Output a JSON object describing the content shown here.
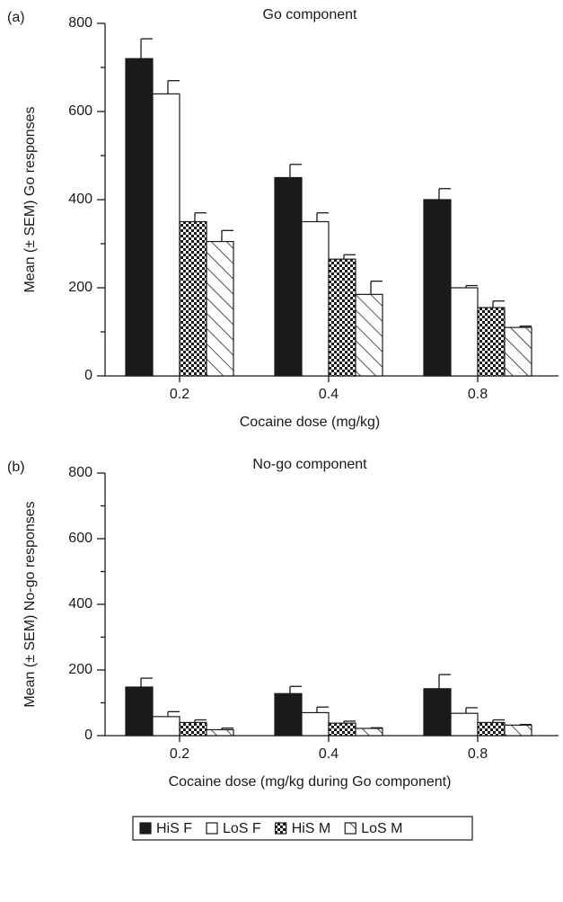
{
  "chart_data": [
    {
      "type": "bar",
      "panel_label": "(a)",
      "title": "Go component",
      "x_label": "Cocaine dose (mg/kg)",
      "y_label": "Mean (± SEM) Go responses",
      "categories": [
        "0.2",
        "0.4",
        "0.8"
      ],
      "series": [
        {
          "color": "#1a1a1a",
          "pattern": "solid",
          "values": [
            720,
            450,
            400
          ],
          "errors": [
            45,
            30,
            25
          ]
        },
        {
          "color": "#1a1a1a",
          "pattern": "none",
          "values": [
            640,
            350,
            200
          ],
          "errors": [
            30,
            20,
            5
          ]
        },
        {
          "color": "#1a1a1a",
          "pattern": "dots",
          "values": [
            350,
            265,
            155
          ],
          "errors": [
            20,
            10,
            15
          ]
        },
        {
          "color": "#1a1a1a",
          "pattern": "hatch",
          "values": [
            305,
            185,
            110
          ],
          "errors": [
            25,
            30,
            3
          ]
        }
      ],
      "ylim": [
        0,
        800
      ],
      "yticks": [
        0,
        200,
        400,
        600,
        800
      ],
      "yminorticks": [
        100,
        300,
        500,
        700
      ]
    },
    {
      "type": "bar",
      "panel_label": "(b)",
      "title": "No-go component",
      "x_label": "Cocaine dose (mg/kg during Go component)",
      "y_label": "Mean (± SEM) No-go responses",
      "categories": [
        "0.2",
        "0.4",
        "0.8"
      ],
      "series": [
        {
          "name": "HiS F",
          "color": "#1a1a1a",
          "pattern": "solid",
          "values": [
            148,
            128,
            143
          ],
          "errors": [
            27,
            22,
            43
          ]
        },
        {
          "name": "LoS F",
          "color": "#1a1a1a",
          "pattern": "none",
          "values": [
            58,
            70,
            68
          ],
          "errors": [
            15,
            17,
            17
          ]
        },
        {
          "name": "HiS M",
          "color": "#1a1a1a",
          "pattern": "dots",
          "values": [
            40,
            38,
            40
          ],
          "errors": [
            8,
            6,
            8
          ]
        },
        {
          "name": "LoS M",
          "color": "#1a1a1a",
          "pattern": "hatch",
          "values": [
            18,
            22,
            32
          ],
          "errors": [
            5,
            2,
            2
          ]
        }
      ],
      "ylim": [
        0,
        800
      ],
      "yticks": [
        0,
        200,
        400,
        600,
        800
      ],
      "yminorticks": [
        100,
        300,
        500,
        700
      ]
    }
  ]
}
